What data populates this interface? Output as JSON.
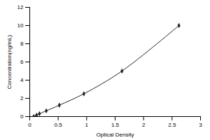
{
  "chart_data": {
    "type": "line",
    "x_label": "Optical Density",
    "y_label": "Concentration(ng/mL)",
    "x": [
      0.07,
      0.12,
      0.17,
      0.29,
      0.52,
      0.95,
      1.62,
      2.62
    ],
    "values": [
      0,
      0.16,
      0.31,
      0.63,
      1.25,
      2.5,
      5,
      10
    ],
    "color": "#262626",
    "marker": "diamond",
    "line_style": "solid",
    "grid": false,
    "xlim": [
      0,
      3
    ],
    "xticks": [
      0,
      0.5,
      1,
      1.5,
      2,
      2.5,
      3
    ],
    "ylim": [
      0,
      12
    ],
    "yticks": [
      0,
      2,
      4,
      6,
      8,
      10,
      12
    ]
  }
}
